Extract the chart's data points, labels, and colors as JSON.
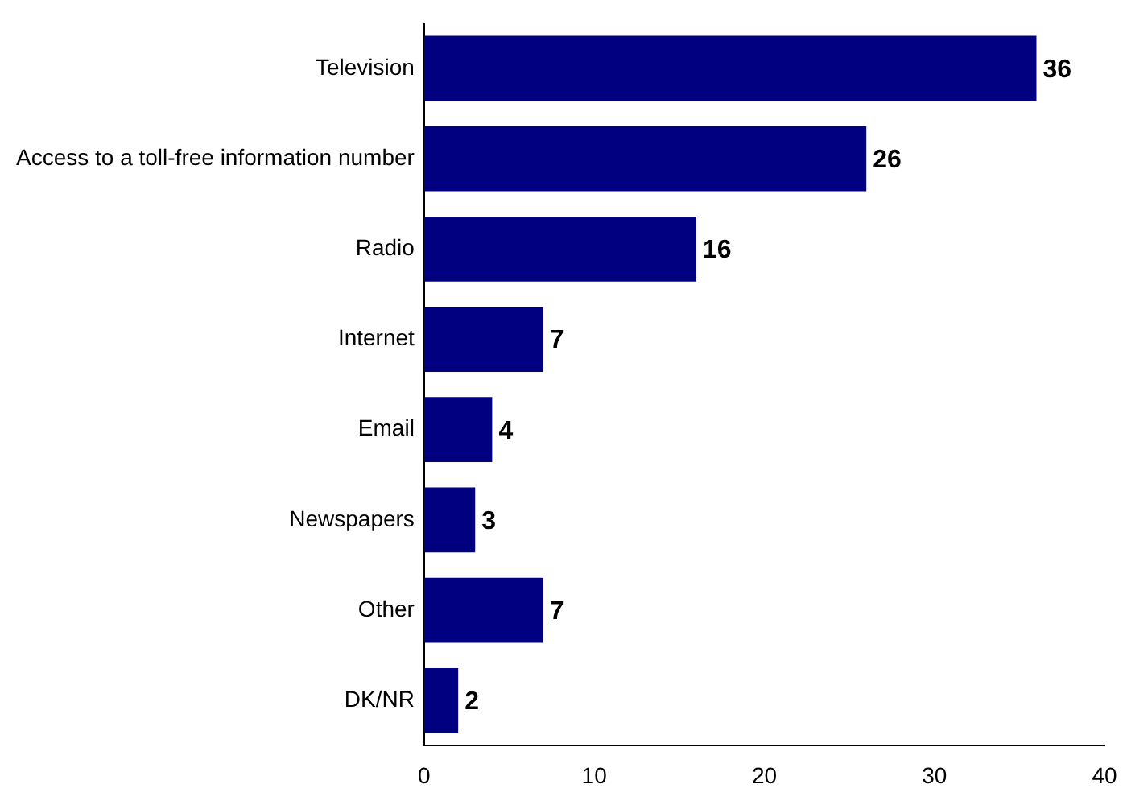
{
  "chart_data": {
    "type": "bar",
    "orientation": "horizontal",
    "categories": [
      "Television",
      "Access to a toll-free information number",
      "Radio",
      "Internet",
      "Email",
      "Newspapers",
      "Other",
      "DK/NR"
    ],
    "values": [
      36,
      26,
      16,
      7,
      4,
      3,
      7,
      2
    ],
    "color": "#000080",
    "xlim": [
      0,
      40
    ],
    "xticks": [
      0,
      10,
      20,
      30,
      40
    ],
    "data_labels": true,
    "grid": false,
    "legend": false
  }
}
